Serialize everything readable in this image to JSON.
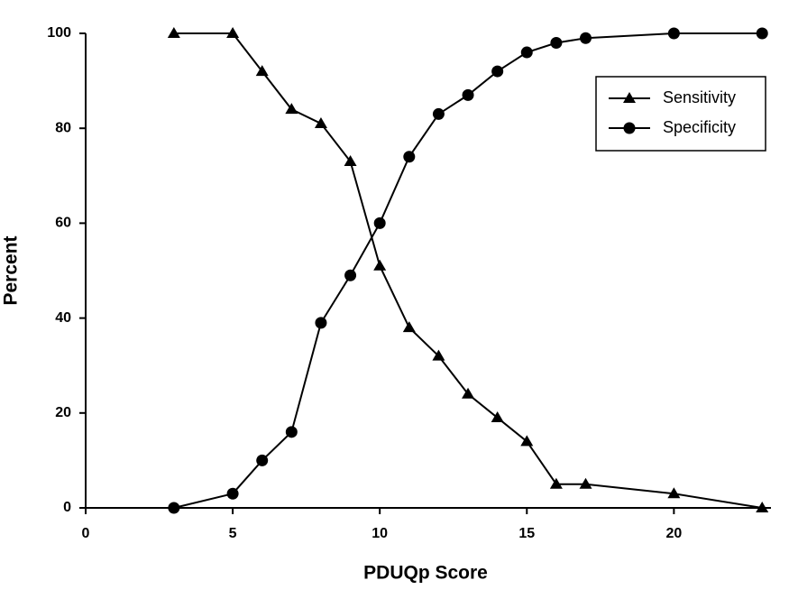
{
  "chart_data": {
    "type": "line",
    "x_label": "PDUQp Score",
    "y_label": "Percent",
    "x": [
      3,
      5,
      6,
      7,
      8,
      9,
      10,
      11,
      12,
      13,
      14,
      15,
      16,
      17,
      20,
      23
    ],
    "series": [
      {
        "name": "Sensitivity",
        "color": "#000000",
        "marker": "triangle",
        "values": [
          100,
          100,
          92,
          84,
          81,
          73,
          51,
          38,
          32,
          24,
          19,
          14,
          5,
          5,
          3,
          0
        ]
      },
      {
        "name": "Specificity",
        "color": "#000000",
        "marker": "circle",
        "values": [
          0,
          3,
          10,
          16,
          39,
          49,
          60,
          74,
          83,
          87,
          92,
          96,
          98,
          99,
          100,
          100
        ]
      }
    ],
    "xlim": [
      0,
      23.3
    ],
    "ylim": [
      0,
      100
    ],
    "xticks": [
      0,
      5,
      10,
      15,
      20
    ],
    "yticks": [
      0,
      20,
      40,
      60,
      80,
      100
    ],
    "grid": false,
    "legend": "upper right"
  }
}
